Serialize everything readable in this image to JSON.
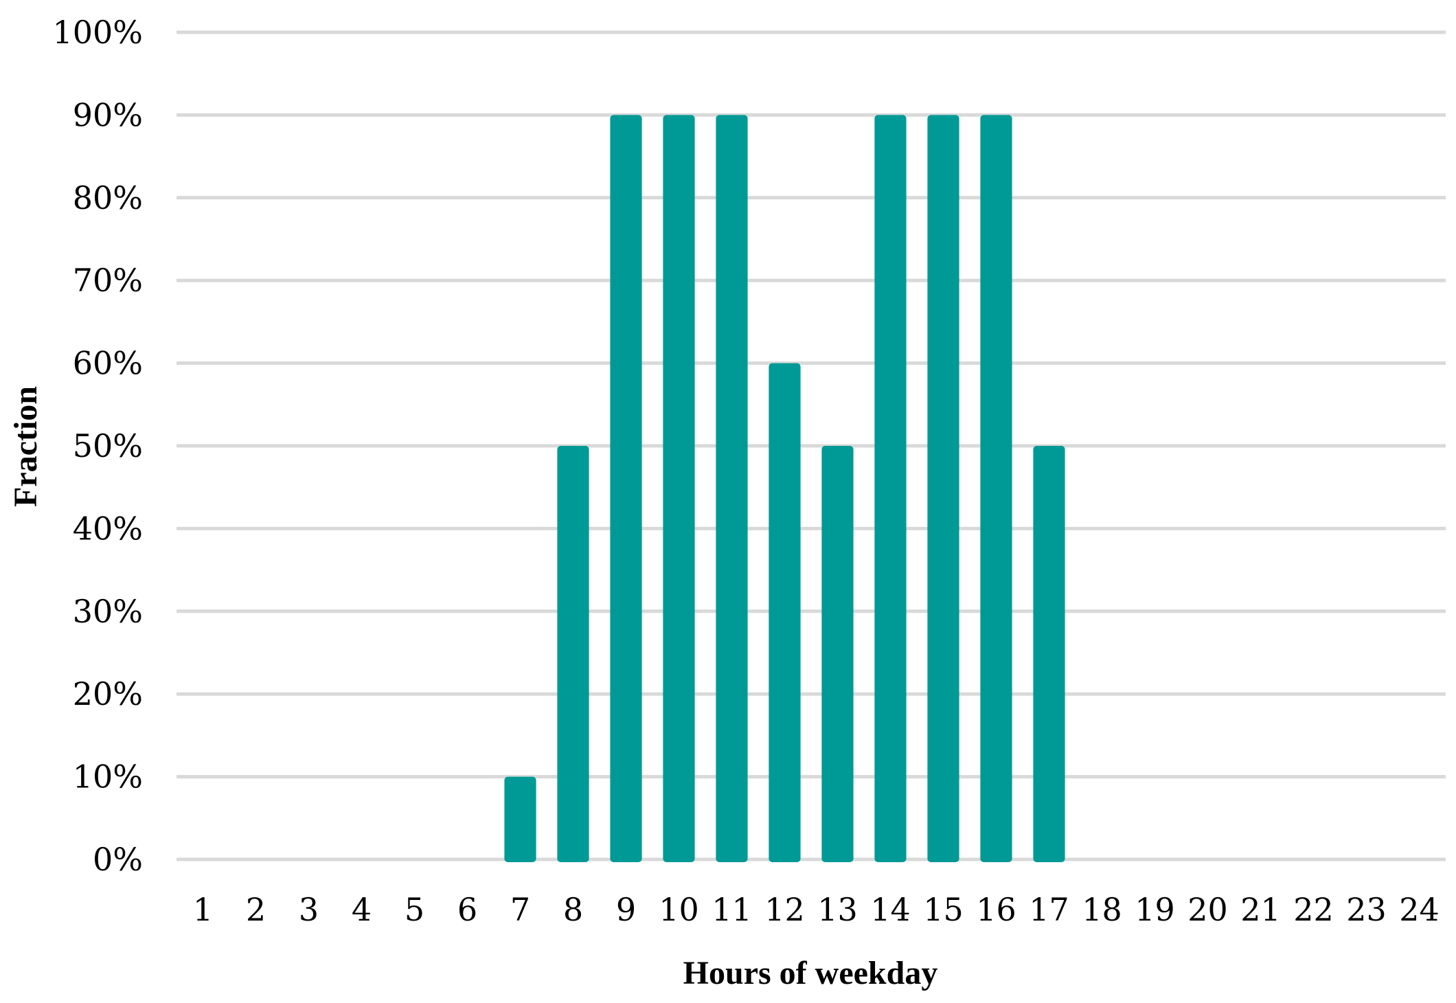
{
  "chart_data": {
    "type": "bar",
    "title": "",
    "xlabel": "Hours of weekday",
    "ylabel": "Fraction",
    "categories": [
      "1",
      "2",
      "3",
      "4",
      "5",
      "6",
      "7",
      "8",
      "9",
      "10",
      "11",
      "12",
      "13",
      "14",
      "15",
      "16",
      "17",
      "18",
      "19",
      "20",
      "21",
      "22",
      "23",
      "24"
    ],
    "values": [
      0,
      0,
      0,
      0,
      0,
      0,
      10,
      50,
      90,
      90,
      90,
      60,
      50,
      90,
      90,
      90,
      50,
      0,
      0,
      0,
      0,
      0,
      0,
      0
    ],
    "value_unit": "%",
    "ylim": [
      0,
      100
    ],
    "ytick_step": 10,
    "yticks": [
      "0%",
      "10%",
      "20%",
      "30%",
      "40%",
      "50%",
      "60%",
      "70%",
      "80%",
      "90%",
      "100%"
    ],
    "grid": "horizontal",
    "legend": "none",
    "bar_color": "#009a96",
    "grid_color": "#d9d9d9"
  }
}
